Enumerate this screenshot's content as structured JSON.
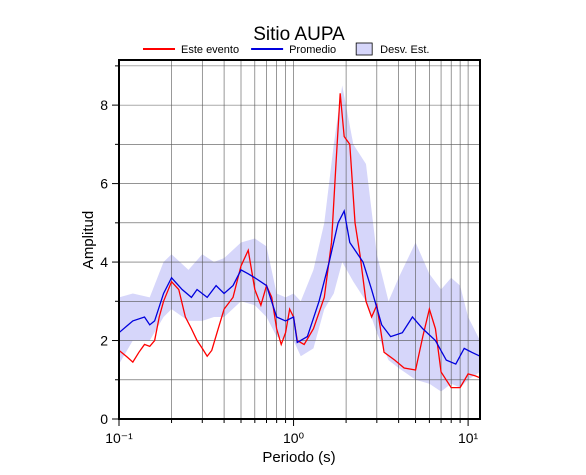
{
  "chart_data": {
    "type": "line",
    "title": "Sitio AUPA",
    "x_label": "Periodo (s)",
    "y_label": "Amplitud",
    "x_scale": "log",
    "xlim": [
      0.1,
      11.7
    ],
    "ylim": [
      0,
      9.15
    ],
    "xticks": [
      {
        "value": 0.1,
        "label": "10⁻¹"
      },
      {
        "value": 1,
        "label": "10⁰"
      },
      {
        "value": 10,
        "label": "10¹"
      }
    ],
    "xminor_ticks": [
      0.2,
      0.3,
      0.4,
      0.5,
      0.6,
      0.7,
      0.8,
      0.9,
      2,
      3,
      4,
      5,
      6,
      7,
      8,
      9
    ],
    "yticks": [
      0,
      2,
      4,
      6,
      8
    ],
    "yminor_ticks": [
      1,
      3,
      5,
      7,
      9
    ],
    "grid": true,
    "legend_position": "top",
    "band": {
      "name": "Desv. Est.",
      "color": "#d6d6fa",
      "x": [
        0.1,
        0.12,
        0.15,
        0.18,
        0.2,
        0.25,
        0.3,
        0.35,
        0.4,
        0.5,
        0.6,
        0.7,
        0.8,
        0.9,
        1.0,
        1.1,
        1.3,
        1.5,
        1.7,
        1.9,
        2.2,
        2.6,
        3.0,
        3.5,
        4.0,
        5.0,
        6.0,
        7.0,
        8.0,
        9.0,
        10.0,
        11.7
      ],
      "upper": [
        3.1,
        3.2,
        3.1,
        4.0,
        4.2,
        3.8,
        4.2,
        4.0,
        4.1,
        4.5,
        4.6,
        4.4,
        3.2,
        3.1,
        3.2,
        3.0,
        3.8,
        5.0,
        7.0,
        8.5,
        7.0,
        6.5,
        4.2,
        3.0,
        3.6,
        4.5,
        3.7,
        3.3,
        3.6,
        3.4,
        2.6,
        2.0
      ],
      "lower": [
        1.4,
        2.0,
        2.0,
        2.6,
        2.8,
        2.5,
        2.5,
        2.6,
        2.6,
        3.0,
        2.9,
        2.6,
        2.1,
        2.0,
        2.0,
        1.6,
        1.8,
        2.8,
        3.2,
        4.0,
        3.5,
        3.0,
        2.2,
        1.5,
        1.3,
        1.0,
        0.9,
        0.7,
        0.9,
        0.8,
        1.0,
        1.2
      ]
    },
    "series": [
      {
        "name": "Este evento",
        "color": "#ff0000",
        "x": [
          0.1,
          0.11,
          0.12,
          0.13,
          0.14,
          0.15,
          0.16,
          0.17,
          0.18,
          0.2,
          0.22,
          0.24,
          0.26,
          0.28,
          0.3,
          0.32,
          0.34,
          0.37,
          0.4,
          0.45,
          0.5,
          0.55,
          0.6,
          0.65,
          0.7,
          0.75,
          0.8,
          0.85,
          0.9,
          0.95,
          1.0,
          1.05,
          1.15,
          1.3,
          1.5,
          1.65,
          1.75,
          1.85,
          1.95,
          2.1,
          2.25,
          2.4,
          2.6,
          2.8,
          3.0,
          3.3,
          3.8,
          4.3,
          5.0,
          5.5,
          6.0,
          6.5,
          7.0,
          8.0,
          9.0,
          10.0,
          11.0,
          11.7
        ],
        "values": [
          1.75,
          1.6,
          1.45,
          1.7,
          1.9,
          1.85,
          2.0,
          2.6,
          3.0,
          3.5,
          3.3,
          2.6,
          2.3,
          2.0,
          1.8,
          1.6,
          1.75,
          2.3,
          2.8,
          3.1,
          3.9,
          4.3,
          3.3,
          2.9,
          3.4,
          3.1,
          2.3,
          1.9,
          2.2,
          2.8,
          2.6,
          2.0,
          1.9,
          2.3,
          3.1,
          4.5,
          6.5,
          8.3,
          7.2,
          7.0,
          5.0,
          4.2,
          3.0,
          2.6,
          2.9,
          1.7,
          1.5,
          1.3,
          1.25,
          2.1,
          2.8,
          2.3,
          1.2,
          0.8,
          0.8,
          1.15,
          1.1,
          1.05
        ]
      },
      {
        "name": "Promedio",
        "color": "#0000dd",
        "x": [
          0.1,
          0.12,
          0.14,
          0.15,
          0.16,
          0.18,
          0.2,
          0.23,
          0.26,
          0.28,
          0.32,
          0.36,
          0.4,
          0.45,
          0.5,
          0.55,
          0.6,
          0.7,
          0.8,
          0.9,
          1.0,
          1.05,
          1.2,
          1.4,
          1.6,
          1.8,
          1.95,
          2.1,
          2.5,
          2.8,
          3.2,
          3.6,
          4.2,
          4.8,
          5.5,
          6.5,
          7.5,
          8.5,
          9.5,
          10.5,
          11.7
        ],
        "values": [
          2.2,
          2.5,
          2.6,
          2.4,
          2.5,
          3.2,
          3.6,
          3.3,
          3.1,
          3.3,
          3.1,
          3.4,
          3.2,
          3.4,
          3.8,
          3.7,
          3.6,
          3.4,
          2.6,
          2.5,
          2.6,
          1.95,
          2.1,
          3.0,
          4.0,
          5.0,
          5.3,
          4.5,
          4.0,
          3.3,
          2.4,
          2.1,
          2.2,
          2.6,
          2.3,
          2.0,
          1.5,
          1.4,
          1.8,
          1.7,
          1.6
        ]
      }
    ]
  }
}
